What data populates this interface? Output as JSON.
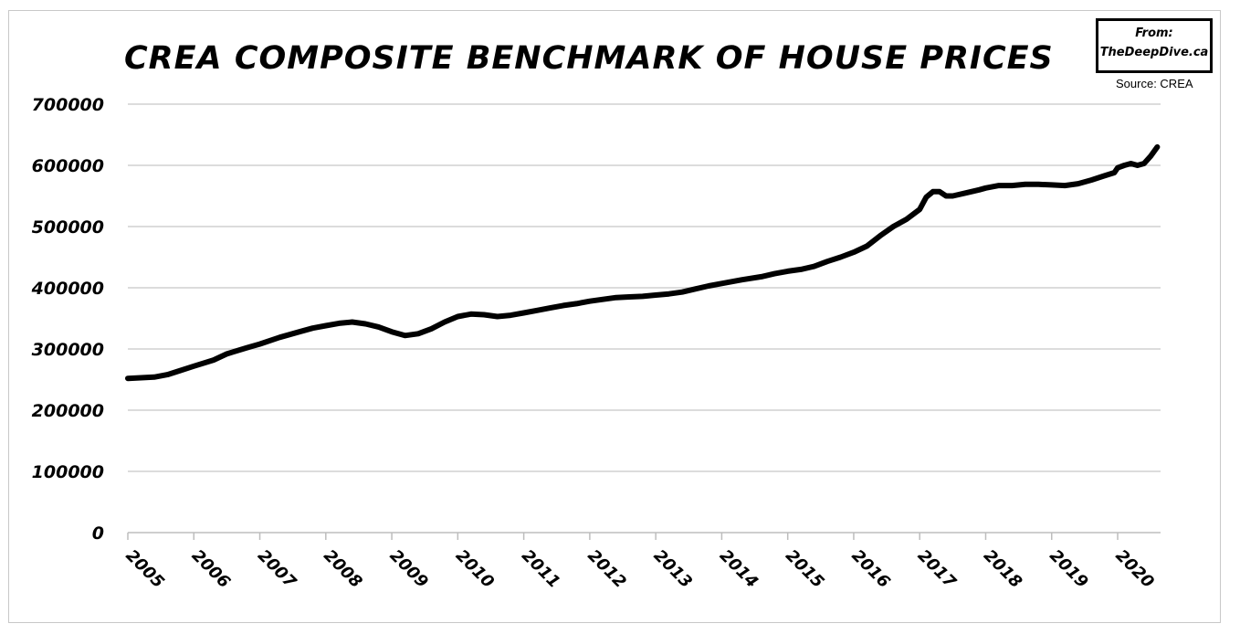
{
  "badge": {
    "from": "From:",
    "site": "TheDeepDive.ca"
  },
  "source": "Source: CREA",
  "chart_data": {
    "type": "line",
    "title": "CREA  COMPOSITE BENCHMARK OF HOUSE PRICES",
    "xlabel": "",
    "ylabel": "",
    "ylim": [
      0,
      700000
    ],
    "xlim": [
      2005,
      2020.65
    ],
    "yticks": [
      "0",
      "100000",
      "200000",
      "300000",
      "400000",
      "500000",
      "600000",
      "700000"
    ],
    "xticks": [
      "2005",
      "2006",
      "2007",
      "2008",
      "2009",
      "2010",
      "2011",
      "2012",
      "2013",
      "2014",
      "2015",
      "2016",
      "2017",
      "2018",
      "2019",
      "2020"
    ],
    "grid": "horizontal",
    "legend": "none",
    "line_color": "#000000",
    "series": [
      {
        "x": [
          2005.0,
          2005.2,
          2005.4,
          2005.6,
          2005.8,
          2006.0,
          2006.3,
          2006.5,
          2006.8,
          2007.0,
          2007.3,
          2007.6,
          2007.8,
          2008.0,
          2008.2,
          2008.4,
          2008.6,
          2008.8,
          2009.0,
          2009.2,
          2009.4,
          2009.6,
          2009.8,
          2010.0,
          2010.2,
          2010.4,
          2010.6,
          2010.8,
          2011.0,
          2011.2,
          2011.4,
          2011.6,
          2011.8,
          2012.0,
          2012.2,
          2012.4,
          2012.6,
          2012.8,
          2013.0,
          2013.2,
          2013.4,
          2013.6,
          2013.8,
          2014.0,
          2014.3,
          2014.6,
          2014.8,
          2015.0,
          2015.2,
          2015.4,
          2015.6,
          2015.8,
          2016.0,
          2016.2,
          2016.4,
          2016.6,
          2016.8,
          2017.0,
          2017.1,
          2017.2,
          2017.3,
          2017.4,
          2017.5,
          2017.7,
          2017.9,
          2018.0,
          2018.2,
          2018.4,
          2018.6,
          2018.8,
          2019.0,
          2019.2,
          2019.4,
          2019.6,
          2019.8,
          2019.95,
          2020.0,
          2020.1,
          2020.2,
          2020.3,
          2020.4,
          2020.5,
          2020.6
        ],
        "values": [
          252000,
          253000,
          254000,
          258000,
          265000,
          272000,
          282000,
          292000,
          302000,
          308000,
          319000,
          328000,
          334000,
          338000,
          342000,
          344000,
          341000,
          336000,
          328000,
          322000,
          325000,
          333000,
          344000,
          353000,
          357000,
          356000,
          353000,
          355000,
          359000,
          363000,
          367000,
          371000,
          374000,
          378000,
          381000,
          384000,
          385000,
          386000,
          388000,
          390000,
          393000,
          398000,
          403000,
          407000,
          413000,
          418000,
          423000,
          427000,
          430000,
          435000,
          443000,
          450000,
          458000,
          468000,
          485000,
          500000,
          512000,
          528000,
          548000,
          557000,
          557000,
          550000,
          550000,
          555000,
          560000,
          563000,
          567000,
          567000,
          569000,
          569000,
          568000,
          567000,
          570000,
          576000,
          583000,
          588000,
          596000,
          600000,
          603000,
          600000,
          603000,
          615000,
          630000
        ]
      }
    ]
  }
}
